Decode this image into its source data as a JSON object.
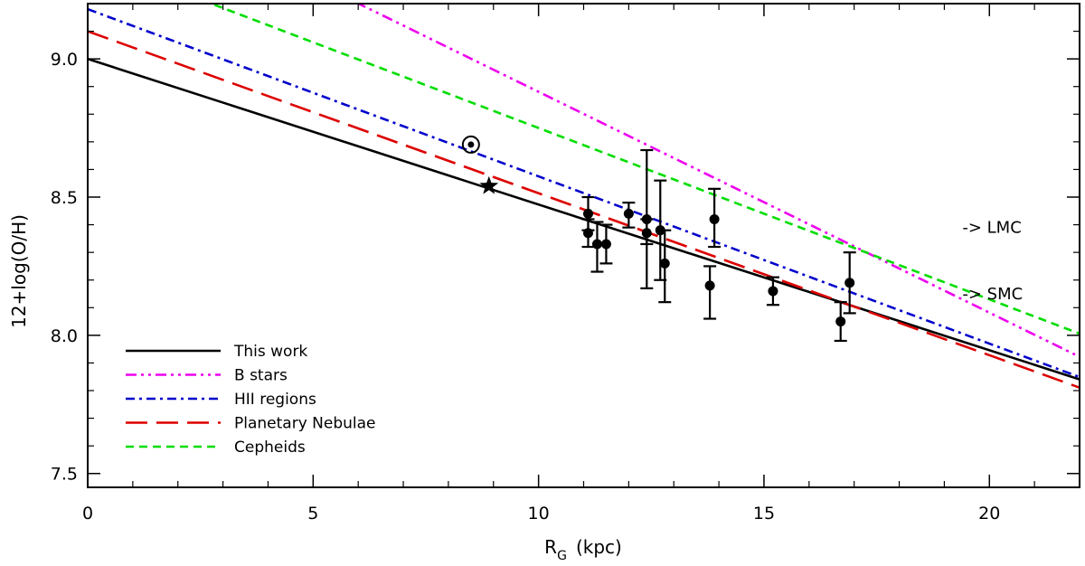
{
  "chart_data": {
    "type": "line",
    "title": "",
    "xlabel": "R",
    "xlabel_sub": "G",
    "xlabel_unit": "(kpc)",
    "ylabel": "12+log(O/H)",
    "xlim": [
      0,
      22
    ],
    "ylim": [
      7.45,
      9.2
    ],
    "xticks": [
      0,
      5,
      10,
      15,
      20
    ],
    "xtick_labels": [
      "0",
      "5",
      "10",
      "15",
      "20"
    ],
    "yticks": [
      7.5,
      8.0,
      8.5,
      9.0
    ],
    "ytick_labels": [
      "7.5",
      "8.0",
      "8.5",
      "9.0"
    ],
    "series": [
      {
        "name": "This work",
        "color": "#000000",
        "style": "solid",
        "intercept": 9.0,
        "slope": -0.0527
      },
      {
        "name": "B stars",
        "color": "#ee00ee",
        "style": "dash-dot-dot",
        "intercept": 9.68,
        "slope": -0.0799
      },
      {
        "name": "HII regions",
        "color": "#0000cc",
        "style": "dash-dot",
        "intercept": 9.18,
        "slope": -0.0605
      },
      {
        "name": "Planetary Nebulae",
        "color": "#dd0000",
        "style": "long-dash",
        "intercept": 9.1,
        "slope": -0.0586
      },
      {
        "name": "Cepheids",
        "color": "#00dd00",
        "style": "short-dash",
        "intercept": 9.37,
        "slope": -0.062
      }
    ],
    "points": [
      {
        "x": 11.1,
        "y": 8.44,
        "err_low": 0.06,
        "err_high": 0.06
      },
      {
        "x": 11.1,
        "y": 8.37,
        "err_low": 0.05,
        "err_high": 0.05
      },
      {
        "x": 11.3,
        "y": 8.33,
        "err_low": 0.1,
        "err_high": 0.08
      },
      {
        "x": 11.5,
        "y": 8.33,
        "err_low": 0.07,
        "err_high": 0.07
      },
      {
        "x": 12.0,
        "y": 8.44,
        "err_low": 0.05,
        "err_high": 0.04
      },
      {
        "x": 12.4,
        "y": 8.42,
        "err_low": 0.09,
        "err_high": 0.25
      },
      {
        "x": 12.4,
        "y": 8.37,
        "err_low": 0.2,
        "err_high": 0.05
      },
      {
        "x": 12.7,
        "y": 8.38,
        "err_low": 0.18,
        "err_high": 0.18
      },
      {
        "x": 12.8,
        "y": 8.26,
        "err_low": 0.14,
        "err_high": 0.12
      },
      {
        "x": 13.8,
        "y": 8.18,
        "err_low": 0.12,
        "err_high": 0.07
      },
      {
        "x": 13.9,
        "y": 8.42,
        "err_low": 0.1,
        "err_high": 0.11
      },
      {
        "x": 15.2,
        "y": 8.16,
        "err_low": 0.05,
        "err_high": 0.05
      },
      {
        "x": 16.7,
        "y": 8.05,
        "err_low": 0.07,
        "err_high": 0.07
      },
      {
        "x": 16.9,
        "y": 8.19,
        "err_low": 0.11,
        "err_high": 0.11
      }
    ],
    "sun": {
      "x": 8.5,
      "y": 8.69
    },
    "star": {
      "x": 8.9,
      "y": 8.54
    },
    "annotations": [
      {
        "text": "-> LMC",
        "x": 19.4,
        "y": 8.39
      },
      {
        "text": "-> SMC",
        "x": 19.4,
        "y": 8.15
      }
    ],
    "legend_position": "bottom-left"
  }
}
